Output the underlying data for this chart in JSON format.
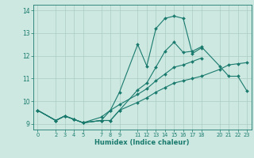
{
  "title": "",
  "xlabel": "Humidex (Indice chaleur)",
  "bg_color": "#cce8e0",
  "line_color": "#1a7a6e",
  "grid_color": "#aaccc4",
  "xlim": [
    -0.5,
    23.5
  ],
  "ylim": [
    8.75,
    14.25
  ],
  "yticks": [
    9,
    10,
    11,
    12,
    13,
    14
  ],
  "xticks": [
    0,
    2,
    3,
    4,
    5,
    7,
    8,
    9,
    11,
    12,
    13,
    14,
    15,
    16,
    17,
    18,
    20,
    21,
    22,
    23
  ],
  "lines": [
    {
      "x": [
        0,
        2,
        3,
        4,
        5,
        7,
        8,
        9,
        11,
        12,
        13,
        14,
        15,
        16,
        17,
        18
      ],
      "y": [
        9.6,
        9.15,
        9.35,
        9.2,
        9.05,
        9.15,
        9.6,
        10.4,
        12.5,
        11.55,
        13.2,
        13.65,
        13.75,
        13.65,
        12.1,
        12.35
      ]
    },
    {
      "x": [
        0,
        2,
        3,
        4,
        5,
        7,
        8,
        9,
        11,
        12,
        13,
        14,
        15,
        16,
        17,
        18,
        20,
        21,
        22,
        23
      ],
      "y": [
        9.6,
        9.15,
        9.35,
        9.2,
        9.05,
        9.15,
        9.15,
        9.6,
        10.5,
        10.8,
        11.5,
        12.2,
        12.6,
        12.15,
        12.2,
        12.4,
        11.55,
        11.1,
        11.1,
        10.45
      ]
    },
    {
      "x": [
        0,
        2,
        3,
        4,
        5,
        7,
        8,
        9,
        11,
        12,
        13,
        14,
        15,
        16,
        17,
        18
      ],
      "y": [
        9.6,
        9.15,
        9.35,
        9.2,
        9.05,
        9.3,
        9.6,
        9.85,
        10.3,
        10.55,
        10.9,
        11.2,
        11.5,
        11.6,
        11.75,
        11.9
      ]
    },
    {
      "x": [
        0,
        2,
        3,
        4,
        5,
        7,
        8,
        9,
        11,
        12,
        13,
        14,
        15,
        16,
        17,
        18,
        20,
        21,
        22,
        23
      ],
      "y": [
        9.6,
        9.15,
        9.35,
        9.2,
        9.05,
        9.15,
        9.15,
        9.6,
        9.95,
        10.15,
        10.4,
        10.6,
        10.8,
        10.9,
        11.0,
        11.1,
        11.4,
        11.6,
        11.65,
        11.7
      ]
    }
  ]
}
